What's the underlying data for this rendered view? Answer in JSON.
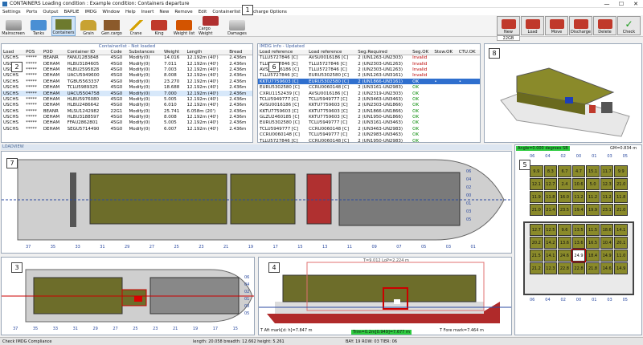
{
  "window": {
    "title": "CONTAINERS  Loading condition : Example condition: Containers departure",
    "minimize": "—",
    "maximize": "☐",
    "close": "✕"
  },
  "menu": [
    "Settings",
    "Ports",
    "Output",
    "BAPLIE",
    "IMDG",
    "Window",
    "Help",
    "Insert",
    "New",
    "Remove",
    "Edit",
    "Containerlist",
    "Discharge Options"
  ],
  "toolbar": {
    "buttons": [
      "Mainscreen",
      "Tanks",
      "Containers",
      "Grain",
      "Gen.cargo",
      "Crane",
      "King",
      "Weight list",
      "Cargo Weight",
      "Damages"
    ],
    "right_buttons": [
      "New",
      "Load",
      "Move",
      "Discharge",
      "Delete",
      "Check"
    ],
    "right_sub_label": "22GB"
  },
  "callouts": [
    "1",
    "2",
    "3",
    "4",
    "5",
    "6",
    "7",
    "8"
  ],
  "containerlist": {
    "title": "Containerlist - Not loaded",
    "columns": [
      "Load",
      "POS",
      "POD",
      "Container ID",
      "Code",
      "Substances",
      "Weight",
      "Length",
      "Bread"
    ],
    "rows": [
      [
        "USCHS",
        "*****",
        "BEANR",
        "FANU1283848",
        "45G0",
        "Modify(0)",
        "14.016",
        "12.192m (40')",
        "2.436m"
      ],
      [
        "USCHS",
        "*****",
        "DEHAM",
        "HLBU3184605",
        "45G0",
        "Modify(0)",
        "7.011",
        "12.192m (40')",
        "2.436m"
      ],
      [
        "USCHS",
        "*****",
        "DEHAM",
        "HLBU2595828",
        "45G0",
        "Modify(0)",
        "7.003",
        "12.192m (40')",
        "2.436m"
      ],
      [
        "USCHS",
        "*****",
        "DEHAM",
        "UACU5949600",
        "45G0",
        "Modify(0)",
        "8.008",
        "12.192m (40')",
        "2.436m"
      ],
      [
        "USCHS",
        "*****",
        "DEHAM",
        "TGBU5563337",
        "45G0",
        "Modify(0)",
        "23.270",
        "12.192m (40')",
        "2.436m"
      ],
      [
        "USCHS",
        "*****",
        "DEHAM",
        "TCLU5989325",
        "45G0",
        "Modify(0)",
        "18.688",
        "12.192m (40')",
        "2.436m"
      ],
      [
        "USCHS",
        "*****",
        "DEHAM",
        "UACU5504758",
        "45G0",
        "Modify(0)",
        "7.000",
        "12.192m (40')",
        "2.436m"
      ],
      [
        "USCHS",
        "*****",
        "DEHAM",
        "HLBU5976080",
        "45G0",
        "Modify(0)",
        "5.005",
        "12.192m (40')",
        "2.436m"
      ],
      [
        "USCHS",
        "*****",
        "DEHAM",
        "HLBU2486642",
        "45G0",
        "Modify(0)",
        "6.010",
        "12.192m (40')",
        "2.436m"
      ],
      [
        "USCHS",
        "*****",
        "BEANR",
        "MLSU1242982",
        "22G1",
        "Modify(0)",
        "25.741",
        "6.058m (20')",
        "2.436m"
      ],
      [
        "USCHS",
        "*****",
        "DEHAM",
        "HLBU3188597",
        "45G0",
        "Modify(0)",
        "8.008",
        "12.192m (40')",
        "2.436m"
      ],
      [
        "USCHS",
        "*****",
        "DEHAM",
        "FFAU2862801",
        "45G0",
        "Modify(0)",
        "5.005",
        "12.192m (40')",
        "2.436m"
      ],
      [
        "USCHS",
        "*****",
        "DEHAM",
        "SEGU5714490",
        "45G0",
        "Modify(0)",
        "6.007",
        "12.192m (40')",
        "2.436m"
      ]
    ]
  },
  "imdg": {
    "title": "IMDG info - Updated",
    "columns": [
      "Load reference",
      "Load reference",
      "Seg.Required",
      "Seg.OK",
      "Stow.OK",
      "CTU.OK"
    ],
    "rows": [
      [
        "TLLU5727846 [C]",
        "AVSU0016186 [C]",
        "2 (UN1263-UN2303)",
        "Invalid",
        "",
        ""
      ],
      [
        "TLLU5727846 [C]",
        "TLLU5727846 [C]",
        "2 (UN2303-UN1263)",
        "Invalid",
        "",
        ""
      ],
      [
        "AVSU0016186 [C]",
        "TLLU5727846 [C]",
        "2 (UN2303-UN1263)",
        "Invalid",
        "",
        ""
      ],
      [
        "TLLU5727846 [C]",
        "EURU5302580 [C]",
        "2 (UN1263-UN3161)",
        "Invalid",
        "",
        ""
      ],
      [
        "KKTU7759603 [C]",
        "EURU5302580 [C]",
        "2 (UN1866-UN3161)",
        "OK",
        "•",
        "•"
      ],
      [
        "EURU5302580 [C]",
        "CCRU0060148 [C]",
        "2 (UN3161-UN2983)",
        "OK",
        "",
        ""
      ],
      [
        "CXRU1152439 [C]",
        "AVSU0016186 [C]",
        "2 (UN2319-UN2303)",
        "OK",
        "",
        ""
      ],
      [
        "TCLU5949777 [C]",
        "TCLU5949777 [C]",
        "2 (UN3463-UN3463)",
        "OK",
        "",
        ""
      ],
      [
        "AVSU0016186 [C]",
        "KKTU7759603 [C]",
        "2 (UN2303-UN1866)",
        "OK",
        "",
        ""
      ],
      [
        "KKTU7759603 [C]",
        "KKTU7759603 [C]",
        "2 (UN1866-UN1866)",
        "OK",
        "",
        ""
      ],
      [
        "GLZU2460185 [C]",
        "KKTU7759603 [C]",
        "2 (UN1950-UN1866)",
        "OK",
        "",
        ""
      ],
      [
        "EURU5302580 [C]",
        "TCLU5949777 [C]",
        "2 (UN3161-UN3463)",
        "OK",
        "",
        ""
      ],
      [
        "TCLU5949777 [C]",
        "CCRU0060148 [C]",
        "2 (UN3463-UN2983)",
        "OK",
        "",
        ""
      ],
      [
        "CCRU0060148 [C]",
        "TCLU5949777 [C]",
        "2 (UN2983-UN3463)",
        "OK",
        "",
        ""
      ],
      [
        "TLLU5727846 [C]",
        "CCRU0060148 [C]",
        "2 (UN1950-UN2983)",
        "OK",
        "",
        ""
      ]
    ]
  },
  "loadview": {
    "label": "LOADVIEW"
  },
  "topview": {
    "bay_labels": [
      "37",
      "35",
      "33",
      "31",
      "29",
      "27",
      "25",
      "23",
      "21",
      "19",
      "17",
      "15",
      "13",
      "11",
      "09",
      "07",
      "05",
      "03",
      "01"
    ],
    "row_labels": [
      "06",
      "04",
      "02",
      "00",
      "01",
      "03",
      "05"
    ]
  },
  "sideview": {
    "bay_labels": [
      "37",
      "35",
      "33",
      "31",
      "29",
      "27",
      "25",
      "23",
      "21",
      "19",
      "17",
      "15"
    ],
    "row_labels": [
      "06",
      "04",
      "02",
      "01",
      "03",
      "05"
    ]
  },
  "profile": {
    "aft_mark": "T Aft mark[d: h]=7.847 m",
    "fwd_mark": "T Fore mark=7.464 m",
    "trim": "Trim=0.2m[0.949]=7.677 m",
    "top_label": "T=9.012 LoP=2.224 m"
  },
  "section": {
    "angle": "Angle=0.000 degrees SB",
    "gm": "GM=0.834 m",
    "top_labels": [
      "06",
      "04",
      "02",
      "00",
      "01",
      "03",
      "05"
    ],
    "bottom_labels": [
      "06",
      "04",
      "02",
      "00",
      "01",
      "03",
      "05"
    ],
    "rows": [
      [
        "9.9",
        "8.3",
        "6.7",
        "4.7",
        "15.1",
        "11.7",
        "9.9"
      ],
      [
        "12.1",
        "12.7",
        "2.4",
        "10.6",
        "5.0",
        "12.3",
        "21.0"
      ],
      [
        "11.9",
        "11.8",
        "16.0",
        "11.2",
        "11.2",
        "11.2",
        "11.8"
      ],
      [
        "21.0",
        "21.4",
        "23.5",
        "19.4",
        "19.9",
        "23.1",
        "21.0"
      ]
    ],
    "hold_rows": [
      [
        "12.7",
        "12.5",
        "9.6",
        "13.5",
        "11.5",
        "18.6",
        "14.1"
      ],
      [
        "20.2",
        "14.2",
        "13.6",
        "13.6",
        "16.5",
        "10.4",
        "20.1"
      ],
      [
        "21.5",
        "14.1",
        "24.6",
        "",
        "18.4",
        "14.9",
        "11.0"
      ],
      [
        "21.2",
        "12.3",
        "22.8",
        "22.8",
        "21.8",
        "14.6",
        "14.9"
      ]
    ],
    "highlight_value": "24.9"
  },
  "status": {
    "left": "Check IMDG Compliance",
    "middle": "length: 20.058  breadth: 12.662  height: 5.261",
    "right": "BAY: 19  ROW: 03  TIER: 06"
  }
}
